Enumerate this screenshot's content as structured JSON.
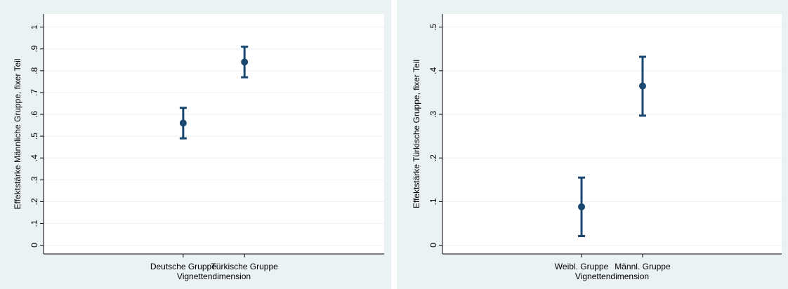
{
  "chart_data": [
    {
      "type": "errorbar",
      "x_label": "Vignettendimension",
      "y_label": "Effektstärke Männliche Gruppe, fixer Teil",
      "categories": [
        "Deutsche Gruppe",
        "Türkische Gruppe"
      ],
      "series": [
        {
          "color": "#1a476f",
          "values": [
            0.56,
            0.84
          ],
          "lower": [
            0.49,
            0.77
          ],
          "upper": [
            0.63,
            0.91
          ]
        }
      ],
      "ylim": [
        -0.04,
        1.06
      ],
      "yticks": [
        0,
        {
          "value": 0.1,
          "label": ".1"
        },
        {
          "value": 0.2,
          "label": ".2"
        },
        {
          "value": 0.3,
          "label": ".3"
        },
        {
          "value": 0.4,
          "label": ".4"
        },
        {
          "value": 0.5,
          "label": ".5"
        },
        {
          "value": 0.6,
          "label": ".6"
        },
        {
          "value": 0.7,
          "label": ".7"
        },
        {
          "value": 0.8,
          "label": ".8"
        },
        {
          "value": 0.9,
          "label": ".9"
        },
        1
      ],
      "grid": true
    },
    {
      "type": "errorbar",
      "x_label": "Vignettendimension",
      "y_label": "Effektstärke Türkische Gruppe, fixer Teil",
      "categories": [
        "Weibl. Gruppe",
        "Männl. Gruppe"
      ],
      "series": [
        {
          "color": "#1a476f",
          "values": [
            0.088,
            0.365
          ],
          "lower": [
            0.021,
            0.297
          ],
          "upper": [
            0.155,
            0.432
          ]
        }
      ],
      "ylim": [
        -0.02,
        0.53
      ],
      "yticks": [
        0,
        {
          "value": 0.1,
          "label": ".1"
        },
        {
          "value": 0.2,
          "label": ".2"
        },
        {
          "value": 0.3,
          "label": ".3"
        },
        {
          "value": 0.4,
          "label": ".4"
        },
        {
          "value": 0.5,
          "label": ".5"
        }
      ],
      "grid": true
    }
  ]
}
